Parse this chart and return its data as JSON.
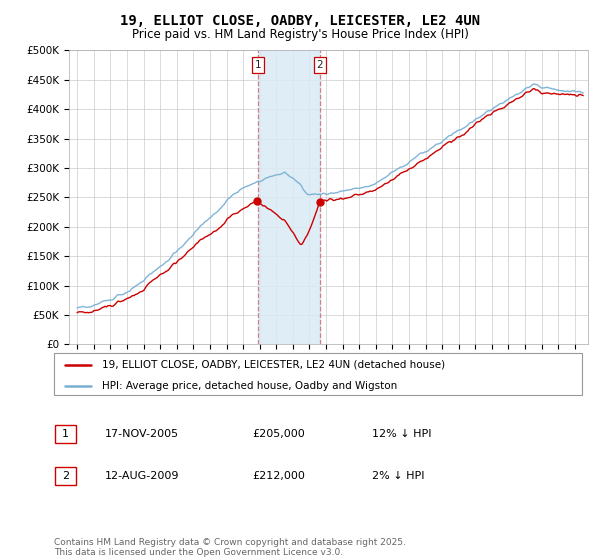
{
  "title": "19, ELLIOT CLOSE, OADBY, LEICESTER, LE2 4UN",
  "subtitle": "Price paid vs. HM Land Registry's House Price Index (HPI)",
  "ylim": [
    0,
    500000
  ],
  "yticks": [
    0,
    50000,
    100000,
    150000,
    200000,
    250000,
    300000,
    350000,
    400000,
    450000,
    500000
  ],
  "ytick_labels": [
    "£0",
    "£50K",
    "£100K",
    "£150K",
    "£200K",
    "£250K",
    "£300K",
    "£350K",
    "£400K",
    "£450K",
    "£500K"
  ],
  "hpi_color": "#7ab0d4",
  "price_color": "#cc0000",
  "sale1_date": "17-NOV-2005",
  "sale1_price": 205000,
  "sale1_hpi_diff": "12% ↓ HPI",
  "sale2_date": "12-AUG-2009",
  "sale2_price": 212000,
  "sale2_hpi_diff": "2% ↓ HPI",
  "sale1_x": 2005.88,
  "sale2_x": 2009.62,
  "legend_line1": "19, ELLIOT CLOSE, OADBY, LEICESTER, LE2 4UN (detached house)",
  "legend_line2": "HPI: Average price, detached house, Oadby and Wigston",
  "footer": "Contains HM Land Registry data © Crown copyright and database right 2025.\nThis data is licensed under the Open Government Licence v3.0.",
  "title_fontsize": 10,
  "subtitle_fontsize": 8.5,
  "tick_fontsize": 7.5,
  "legend_fontsize": 7.5,
  "footer_fontsize": 6.5
}
